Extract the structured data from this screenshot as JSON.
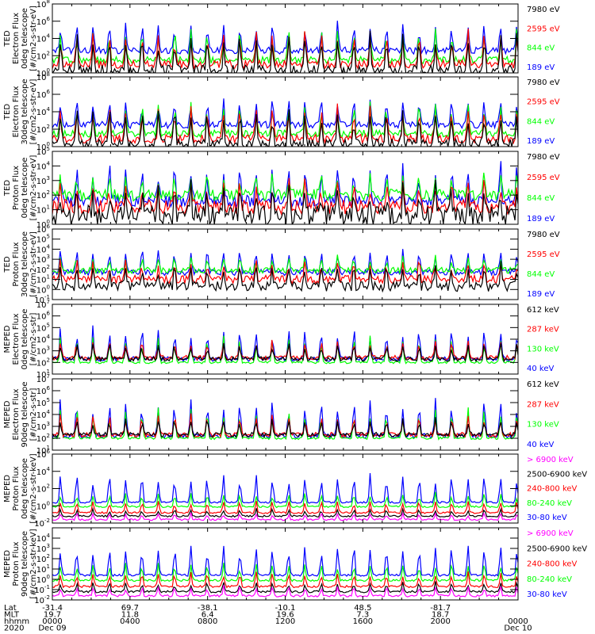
{
  "chart_data": [
    {
      "type": "line",
      "title": "TED Electron Flux 0deg telescope",
      "ylabel": [
        "TED",
        "Electron Flux",
        "0deg telescope",
        "[#/cm2-s-str-eV]"
      ],
      "yscale": "log",
      "ylim": [
        1,
        100000000
      ],
      "yticks": [
        {
          "exp": 0,
          "label": "10^0"
        },
        {
          "exp": 2,
          "label": "10^2"
        },
        {
          "exp": 4,
          "label": "10^4"
        },
        {
          "exp": 6,
          "label": "10^6"
        },
        {
          "exp": 8,
          "label": "10^8"
        }
      ],
      "series": [
        {
          "name": "7980 eV",
          "color": "#000000",
          "base": 0.3,
          "peak": 4.6,
          "noise": 0.6
        },
        {
          "name": "2595 eV",
          "color": "#ff0000",
          "base": 1.0,
          "peak": 5.0,
          "noise": 0.5
        },
        {
          "name": "844 eV",
          "color": "#00ff00",
          "base": 1.5,
          "peak": 5.3,
          "noise": 0.4
        },
        {
          "name": "189 eV",
          "color": "#0000ff",
          "base": 2.6,
          "peak": 6.0,
          "noise": 0.4
        }
      ]
    },
    {
      "type": "line",
      "title": "TED Electron Flux 30deg telescope",
      "ylabel": [
        "TED",
        "Electron Flux",
        "30deg telescope",
        "[#/cm2-s-str-eV]"
      ],
      "yscale": "log",
      "ylim": [
        1,
        100000000
      ],
      "yticks": [
        {
          "exp": 0,
          "label": "10^0"
        },
        {
          "exp": 2,
          "label": "10^2"
        },
        {
          "exp": 4,
          "label": "10^4"
        },
        {
          "exp": 6,
          "label": "10^6"
        },
        {
          "exp": 8,
          "label": "10^8"
        }
      ],
      "series": [
        {
          "name": "7980 eV",
          "color": "#000000",
          "base": 0.3,
          "peak": 4.4,
          "noise": 0.6
        },
        {
          "name": "2595 eV",
          "color": "#ff0000",
          "base": 0.9,
          "peak": 4.9,
          "noise": 0.5
        },
        {
          "name": "844 eV",
          "color": "#00ff00",
          "base": 1.5,
          "peak": 5.2,
          "noise": 0.4
        },
        {
          "name": "189 eV",
          "color": "#0000ff",
          "base": 2.5,
          "peak": 5.8,
          "noise": 0.4
        }
      ]
    },
    {
      "type": "line",
      "title": "TED Proton Flux 0deg telescope",
      "ylabel": [
        "TED",
        "Proton Flux",
        "0deg telescope",
        "[#/cm2-s-str-eV]"
      ],
      "yscale": "log",
      "ylim": [
        1,
        100000
      ],
      "yticks": [
        {
          "exp": 0,
          "label": "10^0"
        },
        {
          "exp": 1,
          "label": "10^1"
        },
        {
          "exp": 2,
          "label": "10^2"
        },
        {
          "exp": 3,
          "label": "10^3"
        },
        {
          "exp": 4,
          "label": "10^4"
        },
        {
          "exp": 5,
          "label": "10^5"
        }
      ],
      "series": [
        {
          "name": "7980 eV",
          "color": "#000000",
          "base": 0.6,
          "peak": 2.6,
          "noise": 0.7
        },
        {
          "name": "2595 eV",
          "color": "#ff0000",
          "base": 1.2,
          "peak": 3.0,
          "noise": 0.5
        },
        {
          "name": "844 eV",
          "color": "#00ff00",
          "base": 2.0,
          "peak": 3.5,
          "noise": 0.4
        },
        {
          "name": "189 eV",
          "color": "#0000ff",
          "base": 1.6,
          "peak": 4.3,
          "noise": 0.4
        }
      ]
    },
    {
      "type": "line",
      "title": "TED Proton Flux 30deg telescope",
      "ylabel": [
        "TED",
        "Proton Flux",
        "30deg telescope",
        "[#/cm2-s-str-eV]"
      ],
      "yscale": "log",
      "ylim": [
        0.1,
        1000000
      ],
      "yticks": [
        {
          "exp": -1,
          "label": "10^-1"
        },
        {
          "exp": 0,
          "label": "10^0"
        },
        {
          "exp": 1,
          "label": "10^1"
        },
        {
          "exp": 2,
          "label": "10^2"
        },
        {
          "exp": 3,
          "label": "10^3"
        },
        {
          "exp": 4,
          "label": "10^4"
        },
        {
          "exp": 5,
          "label": "10^5"
        },
        {
          "exp": 6,
          "label": "10^6"
        }
      ],
      "series": [
        {
          "name": "7980 eV",
          "color": "#000000",
          "base": 0.3,
          "peak": 2.5,
          "noise": 0.5
        },
        {
          "name": "2595 eV",
          "color": "#ff0000",
          "base": 1.0,
          "peak": 3.0,
          "noise": 0.4
        },
        {
          "name": "844 eV",
          "color": "#00ff00",
          "base": 1.9,
          "peak": 3.3,
          "noise": 0.3
        },
        {
          "name": "189 eV",
          "color": "#0000ff",
          "base": 1.7,
          "peak": 4.2,
          "noise": 0.3
        }
      ]
    },
    {
      "type": "line",
      "title": "MEPED Electron Flux 0deg telescope",
      "ylabel": [
        "MEPED",
        "Electron Flux",
        "0deg telescope",
        "[#/cm2-s-str]"
      ],
      "yscale": "log",
      "ylim": [
        10,
        10000000
      ],
      "yticks": [
        {
          "exp": 1,
          "label": "10^1"
        },
        {
          "exp": 2,
          "label": "10^2"
        },
        {
          "exp": 3,
          "label": "10^3"
        },
        {
          "exp": 4,
          "label": "10^4"
        },
        {
          "exp": 5,
          "label": "10^5"
        },
        {
          "exp": 6,
          "label": "10^6"
        },
        {
          "exp": 7,
          "label": "10^7"
        }
      ],
      "series": [
        {
          "name": "612 keV",
          "color": "#000000",
          "base": 2.3,
          "peak": 3.6,
          "noise": 0.2
        },
        {
          "name": "287 keV",
          "color": "#ff0000",
          "base": 2.4,
          "peak": 4.0,
          "noise": 0.2
        },
        {
          "name": "130 keV",
          "color": "#00ff00",
          "base": 2.0,
          "peak": 4.3,
          "noise": 0.1
        },
        {
          "name": "40 keV",
          "color": "#0000ff",
          "base": 2.3,
          "peak": 5.2,
          "noise": 0.2
        }
      ]
    },
    {
      "type": "line",
      "title": "MEPED Electron Flux 90deg telescope",
      "ylabel": [
        "MEPED",
        "Electron Flux",
        "90deg telescope",
        "[#/cm2-s-str]"
      ],
      "yscale": "log",
      "ylim": [
        10,
        10000000
      ],
      "yticks": [
        {
          "exp": 1,
          "label": "10^1"
        },
        {
          "exp": 2,
          "label": "10^2"
        },
        {
          "exp": 3,
          "label": "10^3"
        },
        {
          "exp": 4,
          "label": "10^4"
        },
        {
          "exp": 5,
          "label": "10^5"
        },
        {
          "exp": 6,
          "label": "10^6"
        },
        {
          "exp": 7,
          "label": "10^7"
        }
      ],
      "series": [
        {
          "name": "612 keV",
          "color": "#000000",
          "base": 2.3,
          "peak": 3.7,
          "noise": 0.2
        },
        {
          "name": "287 keV",
          "color": "#ff0000",
          "base": 2.3,
          "peak": 4.1,
          "noise": 0.2
        },
        {
          "name": "130 keV",
          "color": "#00ff00",
          "base": 2.0,
          "peak": 4.6,
          "noise": 0.1
        },
        {
          "name": "40 keV",
          "color": "#0000ff",
          "base": 2.2,
          "peak": 5.5,
          "noise": 0.2
        }
      ]
    },
    {
      "type": "line",
      "title": "MEPED Proton Flux 0deg telescope",
      "ylabel": [
        "MEPED",
        "Proton Flux",
        "0deg telescope",
        "[#/cm2-s-str-keV]"
      ],
      "yscale": "log",
      "ylim": [
        0.01,
        1000000
      ],
      "yticks": [
        {
          "exp": -2,
          "label": "10^-2"
        },
        {
          "exp": 0,
          "label": "10^0"
        },
        {
          "exp": 2,
          "label": "10^2"
        },
        {
          "exp": 4,
          "label": "10^4"
        },
        {
          "exp": 6,
          "label": "10^6"
        }
      ],
      "series": [
        {
          "name": "> 6900 keV",
          "color": "#ff00ff",
          "base": -1.6,
          "peak": -0.8,
          "noise": 0.1
        },
        {
          "name": "2500-6900 keV",
          "color": "#000000",
          "base": -1.2,
          "peak": -0.3,
          "noise": 0.1
        },
        {
          "name": "240-800 keV",
          "color": "#ff0000",
          "base": -0.8,
          "peak": 0.7,
          "noise": 0.1
        },
        {
          "name": "80-240 keV",
          "color": "#00ff00",
          "base": -0.1,
          "peak": 1.6,
          "noise": 0.1
        },
        {
          "name": "30-80 keV",
          "color": "#0000ff",
          "base": 0.4,
          "peak": 3.8,
          "noise": 0.1
        }
      ]
    },
    {
      "type": "line",
      "title": "MEPED Proton Flux 90deg telescope",
      "ylabel": [
        "MEPED",
        "Proton Flux",
        "90deg telescope",
        "[#/cm2-s-str-keV]"
      ],
      "yscale": "log",
      "ylim": [
        0.01,
        100000
      ],
      "yticks": [
        {
          "exp": -2,
          "label": "10^-2"
        },
        {
          "exp": -1,
          "label": "10^-1"
        },
        {
          "exp": 0,
          "label": "10^0"
        },
        {
          "exp": 1,
          "label": "10^1"
        },
        {
          "exp": 2,
          "label": "10^2"
        },
        {
          "exp": 3,
          "label": "10^3"
        },
        {
          "exp": 4,
          "label": "10^4"
        }
      ],
      "series": [
        {
          "name": "> 6900 keV",
          "color": "#ff00ff",
          "base": -1.6,
          "peak": -0.6,
          "noise": 0.1
        },
        {
          "name": "2500-6900 keV",
          "color": "#000000",
          "base": -1.2,
          "peak": -0.2,
          "noise": 0.1
        },
        {
          "name": "240-800 keV",
          "color": "#ff0000",
          "base": -0.7,
          "peak": 0.8,
          "noise": 0.1
        },
        {
          "name": "80-240 keV",
          "color": "#00ff00",
          "base": -0.1,
          "peak": 1.7,
          "noise": 0.1
        },
        {
          "name": "30-80 keV",
          "color": "#0000ff",
          "base": 0.4,
          "peak": 3.5,
          "noise": 0.1
        }
      ]
    }
  ],
  "x_axis": {
    "row_labels": [
      "Lat",
      "MLT",
      "hhmm",
      "2020"
    ],
    "ticks": [
      {
        "lat": "-31.4",
        "mlt": "19.7",
        "hhmm": "0000",
        "date": "Dec 09"
      },
      {
        "lat": "69.7",
        "mlt": "11.8",
        "hhmm": "0400",
        "date": ""
      },
      {
        "lat": "-38.1",
        "mlt": "6.4",
        "hhmm": "0800",
        "date": ""
      },
      {
        "lat": "-10.1",
        "mlt": "19.6",
        "hhmm": "1200",
        "date": ""
      },
      {
        "lat": "48.5",
        "mlt": "7.3",
        "hhmm": "1600",
        "date": ""
      },
      {
        "lat": "-81.7",
        "mlt": "18.7",
        "hhmm": "2000",
        "date": ""
      },
      {
        "lat": "",
        "mlt": "",
        "hhmm": "0000",
        "date": "Dec 10"
      }
    ],
    "range_hours": [
      0,
      24
    ],
    "orbit_period_hours": 1.68
  }
}
